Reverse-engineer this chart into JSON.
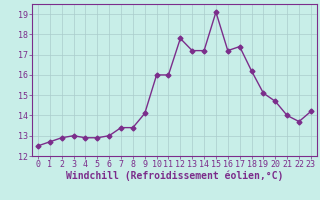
{
  "x": [
    0,
    1,
    2,
    3,
    4,
    5,
    6,
    7,
    8,
    9,
    10,
    11,
    12,
    13,
    14,
    15,
    16,
    17,
    18,
    19,
    20,
    21,
    22,
    23
  ],
  "y": [
    12.5,
    12.7,
    12.9,
    13.0,
    12.9,
    12.9,
    13.0,
    13.4,
    13.4,
    14.1,
    16.0,
    16.0,
    17.8,
    17.2,
    17.2,
    19.1,
    17.2,
    17.4,
    16.2,
    15.1,
    14.7,
    14.0,
    13.7,
    14.2
  ],
  "line_color": "#7B2D8B",
  "marker": "D",
  "marker_size": 2.5,
  "line_width": 1.0,
  "bg_color": "#C8EEE8",
  "grid_color": "#AACCCC",
  "xlabel": "Windchill (Refroidissement éolien,°C)",
  "xlabel_color": "#7B2D8B",
  "xlabel_fontsize": 7,
  "tick_color": "#7B2D8B",
  "tick_fontsize": 6,
  "ylim": [
    12,
    19.5
  ],
  "xlim": [
    -0.5,
    23.5
  ],
  "yticks": [
    12,
    13,
    14,
    15,
    16,
    17,
    18,
    19
  ],
  "xticks": [
    0,
    1,
    2,
    3,
    4,
    5,
    6,
    7,
    8,
    9,
    10,
    11,
    12,
    13,
    14,
    15,
    16,
    17,
    18,
    19,
    20,
    21,
    22,
    23
  ]
}
